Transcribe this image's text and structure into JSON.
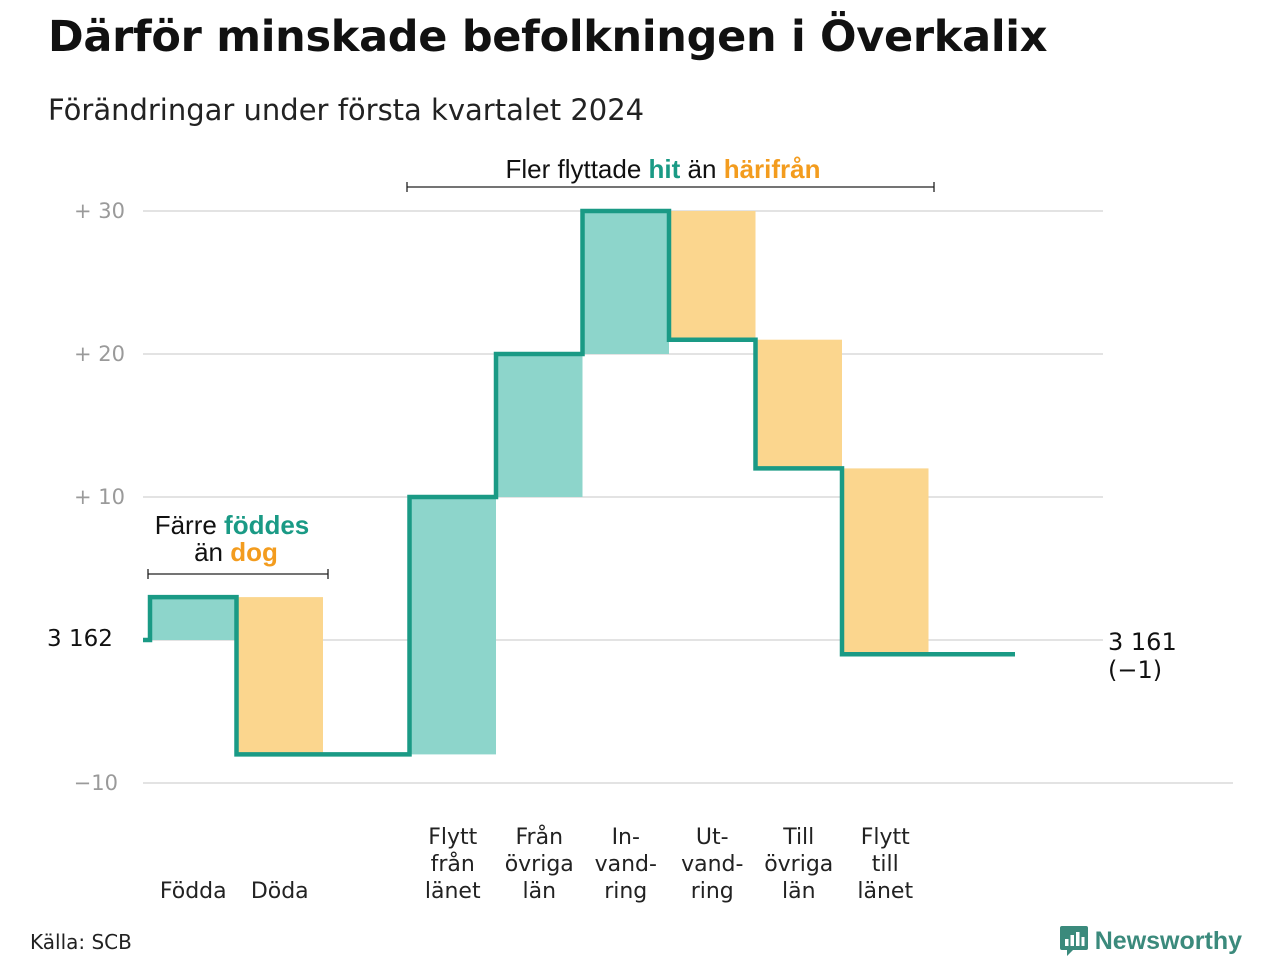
{
  "title": "Därför minskade befolkningen i Överkalix",
  "subtitle": "Förändringar under första kvartalet 2024",
  "source": "Källa: SCB",
  "brand": "Newsworthy",
  "colors": {
    "increase": "#8dd5cb",
    "decrease": "#fbd68e",
    "line": "#1a9a85",
    "teal_text": "#1a9a85",
    "orange_text": "#f39c1e",
    "grid": "#e3e3e3"
  },
  "chart_data": {
    "type": "waterfall",
    "start_value": 3162,
    "start_label": "3  162",
    "end_label": "3 161",
    "end_change_label": "(−1)",
    "ylim": [
      -10,
      30
    ],
    "yticks": [
      {
        "value": 30,
        "label": "+  30"
      },
      {
        "value": 20,
        "label": "+  20"
      },
      {
        "value": 10,
        "label": "+  10"
      },
      {
        "value": 0,
        "label": ""
      },
      {
        "value": -10,
        "label": "−10"
      }
    ],
    "steps": [
      {
        "category": [
          "Födda"
        ],
        "change": 3,
        "kind": "increase"
      },
      {
        "category": [
          "Döda"
        ],
        "change": -11,
        "kind": "decrease"
      },
      {
        "category": [
          ""
        ],
        "change": 0,
        "kind": "none"
      },
      {
        "category": [
          "Flytt",
          "från",
          "länet"
        ],
        "change": 18,
        "kind": "increase"
      },
      {
        "category": [
          "Från",
          "övriga",
          "län"
        ],
        "change": 10,
        "kind": "increase"
      },
      {
        "category": [
          "In-",
          "vand-",
          "ring"
        ],
        "change": 10,
        "kind": "increase"
      },
      {
        "category": [
          "Ut-",
          "vand-",
          "ring"
        ],
        "change": -9,
        "kind": "decrease"
      },
      {
        "category": [
          "Till",
          "övriga",
          "län"
        ],
        "change": -9,
        "kind": "decrease"
      },
      {
        "category": [
          "Flytt",
          "till",
          "länet"
        ],
        "change": -13,
        "kind": "decrease"
      },
      {
        "category": [
          ""
        ],
        "change": 0,
        "kind": "none"
      }
    ],
    "annotations": {
      "left": {
        "line1_plain": "Färre ",
        "line1_teal": "föddes",
        "line2_plain": "än ",
        "line2_orange": "dog"
      },
      "top": {
        "plain1": "Fler flyttade ",
        "teal": "hit",
        "plain2": " än ",
        "orange": "härifrån"
      }
    }
  }
}
